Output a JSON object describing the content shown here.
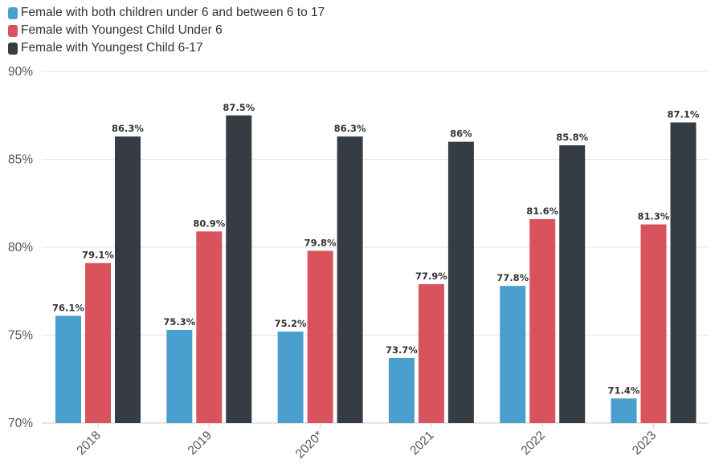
{
  "chart_data": {
    "type": "bar",
    "categories": [
      "2018",
      "2019",
      "2020*",
      "2021",
      "2022",
      "2023"
    ],
    "series": [
      {
        "name": "Female with both children under 6 and between 6 to 17",
        "color": "#4a9fce",
        "values": [
          76.1,
          75.3,
          75.2,
          73.7,
          77.8,
          71.4
        ],
        "labels": [
          "76.1%",
          "75.3%",
          "75.2%",
          "73.7%",
          "77.8%",
          "71.4%"
        ]
      },
      {
        "name": "Female with Youngest Child Under 6",
        "color": "#d8535c",
        "values": [
          79.1,
          80.9,
          79.8,
          77.9,
          81.6,
          81.3
        ],
        "labels": [
          "79.1%",
          "80.9%",
          "79.8%",
          "77.9%",
          "81.6%",
          "81.3%"
        ]
      },
      {
        "name": "Female with Youngest Child 6-17",
        "color": "#363c43",
        "values": [
          86.3,
          87.5,
          86.3,
          86,
          85.8,
          87.1
        ],
        "labels": [
          "86.3%",
          "87.5%",
          "86.3%",
          "86%",
          "85.8%",
          "87.1%"
        ]
      }
    ],
    "ylim": [
      70,
      90
    ],
    "yticks": [
      70,
      75,
      80,
      85,
      90
    ],
    "ytick_labels": [
      "70%",
      "75%",
      "80%",
      "85%",
      "90%"
    ],
    "xlabel": "",
    "ylabel": "",
    "title": "",
    "grid": true,
    "legend_position": "top-left"
  }
}
